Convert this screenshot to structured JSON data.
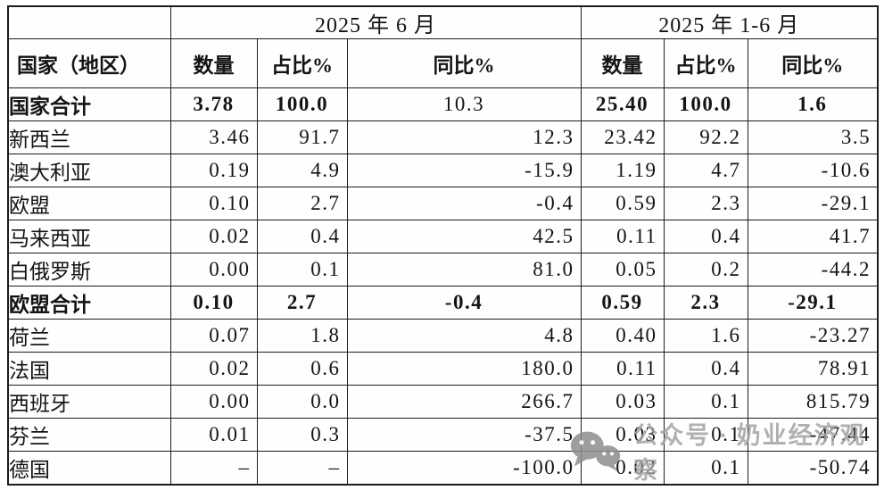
{
  "table": {
    "period_june": "2025 年 6 月",
    "period_jan_jun": "2025 年 1-6 月",
    "region_header": "国家（地区）",
    "columns": [
      "数量",
      "占比%",
      "同比%",
      "数量",
      "占比%",
      "同比%"
    ],
    "rows": [
      {
        "label": "国家合计",
        "style": "total",
        "values": [
          "3.78",
          "100.0",
          "10.3",
          "25.40",
          "100.0",
          "1.6"
        ],
        "regular_cells": [
          2
        ]
      },
      {
        "label": "新西兰",
        "style": "normal",
        "values": [
          "3.46",
          "91.7",
          "12.3",
          "23.42",
          "92.2",
          "3.5"
        ]
      },
      {
        "label": "澳大利亚",
        "style": "normal",
        "values": [
          "0.19",
          "4.9",
          "-15.9",
          "1.19",
          "4.7",
          "-10.6"
        ]
      },
      {
        "label": "欧盟",
        "style": "normal",
        "values": [
          "0.10",
          "2.7",
          "-0.4",
          "0.59",
          "2.3",
          "-29.1"
        ]
      },
      {
        "label": "马来西亚",
        "style": "normal",
        "values": [
          "0.02",
          "0.4",
          "42.5",
          "0.11",
          "0.4",
          "41.7"
        ]
      },
      {
        "label": "白俄罗斯",
        "style": "normal",
        "values": [
          "0.00",
          "0.1",
          "81.0",
          "0.05",
          "0.2",
          "-44.2"
        ]
      },
      {
        "label": "欧盟合计",
        "style": "total",
        "values": [
          "0.10",
          "2.7",
          "-0.4",
          "0.59",
          "2.3",
          "-29.1"
        ]
      },
      {
        "label": "荷兰",
        "style": "normal",
        "values": [
          "0.07",
          "1.8",
          "4.8",
          "0.40",
          "1.6",
          "-23.27"
        ]
      },
      {
        "label": "法国",
        "style": "normal",
        "values": [
          "0.02",
          "0.6",
          "180.0",
          "0.11",
          "0.4",
          "78.91"
        ]
      },
      {
        "label": "西班牙",
        "style": "normal",
        "values": [
          "0.00",
          "0.0",
          "266.7",
          "0.03",
          "0.1",
          "815.79"
        ]
      },
      {
        "label": "芬兰",
        "style": "normal",
        "values": [
          "0.01",
          "0.3",
          "-37.5",
          "0.03",
          "0.1",
          "-47.44"
        ]
      },
      {
        "label": "德国",
        "style": "normal",
        "values": [
          "–",
          "–",
          "-100.0",
          "0.02",
          "0.1",
          "-50.74"
        ]
      }
    ]
  },
  "watermark": {
    "text": "公众号 · 奶业经济观察",
    "logo": "wechat-logo-icon",
    "color": "#a3a3a3"
  }
}
